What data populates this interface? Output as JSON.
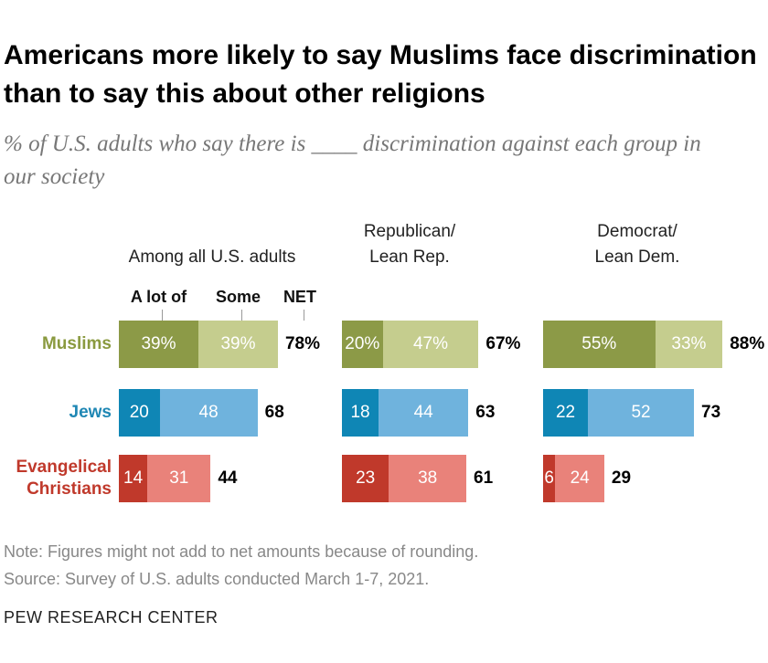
{
  "title": "Americans more likely to say Muslims face discrimination than to say this about other religions",
  "subtitle": "% of U.S. adults who say there is ____ discrimination against each group in our society",
  "note": "Note: Figures might not add to net amounts because of rounding.",
  "source": "Source: Survey of U.S. adults conducted March 1-7, 2021.",
  "footer": "PEW RESEARCH CENTER",
  "chart_data": [
    {
      "type": "bar",
      "orientation": "horizontal",
      "stacked": true,
      "title": "Among all U.S. adults",
      "categories": [
        "Muslims",
        "Jews",
        "Evangelical\nChristians"
      ],
      "category_colors": [
        "#8a9a3f",
        "#1f87b4",
        "#c0392b"
      ],
      "series": [
        {
          "name": "A lot of",
          "colors": [
            "#8c9a47",
            "#0f86b5",
            "#c0392b"
          ],
          "values": [
            39,
            20,
            14
          ],
          "value_labels": [
            "39%",
            "20",
            "14"
          ]
        },
        {
          "name": "Some",
          "colors": [
            "#c5cd8e",
            "#6fb3dd",
            "#e9827a"
          ],
          "values": [
            39,
            48,
            31
          ],
          "value_labels": [
            "39%",
            "48",
            "31"
          ]
        }
      ],
      "net": {
        "name": "NET",
        "values": [
          78,
          68,
          44
        ],
        "value_labels": [
          "78%",
          "68",
          "44"
        ]
      }
    },
    {
      "type": "bar",
      "orientation": "horizontal",
      "stacked": true,
      "title": "Republican/\nLean Rep.",
      "series": [
        {
          "colors": [
            "#8c9a47",
            "#0f86b5",
            "#c0392b"
          ],
          "values": [
            20,
            18,
            23
          ],
          "value_labels": [
            "20%",
            "18",
            "23"
          ]
        },
        {
          "colors": [
            "#c5cd8e",
            "#6fb3dd",
            "#e9827a"
          ],
          "values": [
            47,
            44,
            38
          ],
          "value_labels": [
            "47%",
            "44",
            "38"
          ]
        }
      ],
      "net": {
        "values": [
          67,
          63,
          61
        ],
        "value_labels": [
          "67%",
          "63",
          "61"
        ]
      }
    },
    {
      "type": "bar",
      "orientation": "horizontal",
      "stacked": true,
      "title": "Democrat/\nLean Dem.",
      "series": [
        {
          "colors": [
            "#8c9a47",
            "#0f86b5",
            "#c0392b"
          ],
          "values": [
            55,
            22,
            6
          ],
          "value_labels": [
            "55%",
            "22",
            "6"
          ]
        },
        {
          "colors": [
            "#c5cd8e",
            "#6fb3dd",
            "#e9827a"
          ],
          "values": [
            33,
            52,
            24
          ],
          "value_labels": [
            "33%",
            "52",
            "24"
          ]
        }
      ],
      "net": {
        "values": [
          88,
          73,
          29
        ],
        "value_labels": [
          "88%",
          "73",
          "29"
        ]
      }
    }
  ]
}
